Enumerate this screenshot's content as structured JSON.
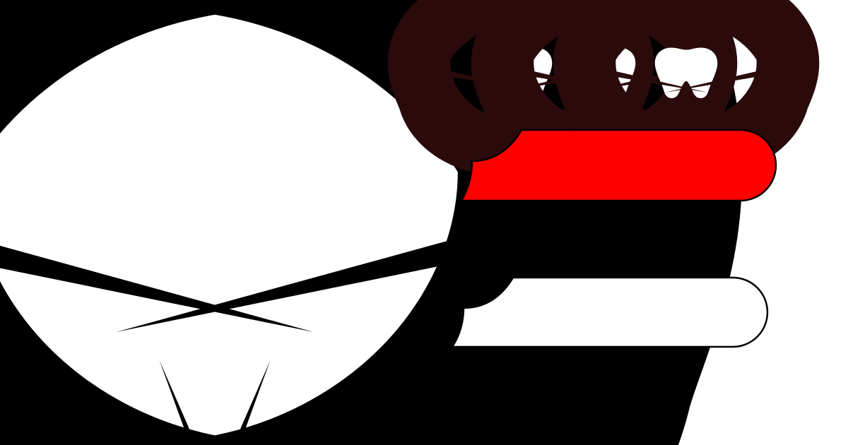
{
  "scene": {
    "background": "#ffffff",
    "outline_color": "#000000",
    "small_tooth_outline_color": "#2a0a0a",
    "accent_color": "#ff0000"
  },
  "large_tooth": {
    "icon": "tooth-icon"
  },
  "small_teeth": {
    "icon": "tooth-icon",
    "count": 3
  },
  "brush_bars": [
    {
      "icon": "toothbrush-handle-icon",
      "filled": true,
      "fill_color": "#ff0000"
    },
    {
      "icon": "toothbrush-handle-icon",
      "filled": false,
      "fill_color": "#ffffff"
    }
  ]
}
